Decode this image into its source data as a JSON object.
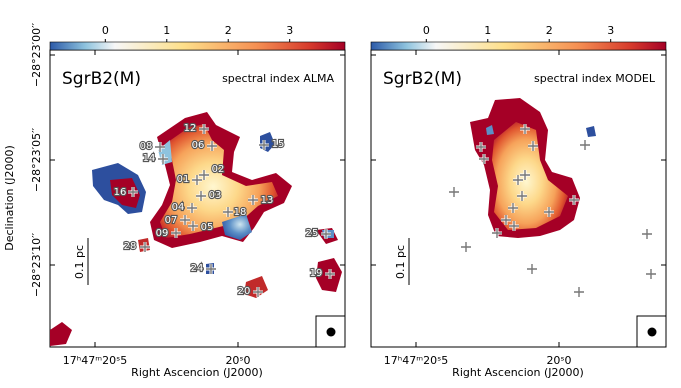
{
  "colorbar": {
    "lim": [
      -0.9,
      3.9
    ],
    "ticks": [
      0,
      1,
      2,
      3
    ]
  },
  "panels": [
    {
      "source": "SgrB2(M)",
      "label": "spectral index ALMA",
      "scale": "0.1 pc",
      "xlabel": "Right Ascencion (J2000)"
    },
    {
      "source": "SgrB2(M)",
      "label": "spectral index MODEL",
      "scale": "0.1 pc",
      "xlabel": "Right Ascencion (J2000)"
    }
  ],
  "ylabel": "Declination (J2000)",
  "ra_ticks": [
    "17ʰ47ᵐ20ˢ5",
    "20ˢ0"
  ],
  "dec_ticks": [
    "−28°23′00′′",
    "−28°23′05′′",
    "−28°23′10′′"
  ],
  "sources": [
    "12",
    "08",
    "06",
    "14",
    "15",
    "01",
    "02",
    "16",
    "03",
    "13",
    "04",
    "18",
    "07",
    "05",
    "09",
    "28",
    "25",
    "24",
    "19",
    "20"
  ]
}
